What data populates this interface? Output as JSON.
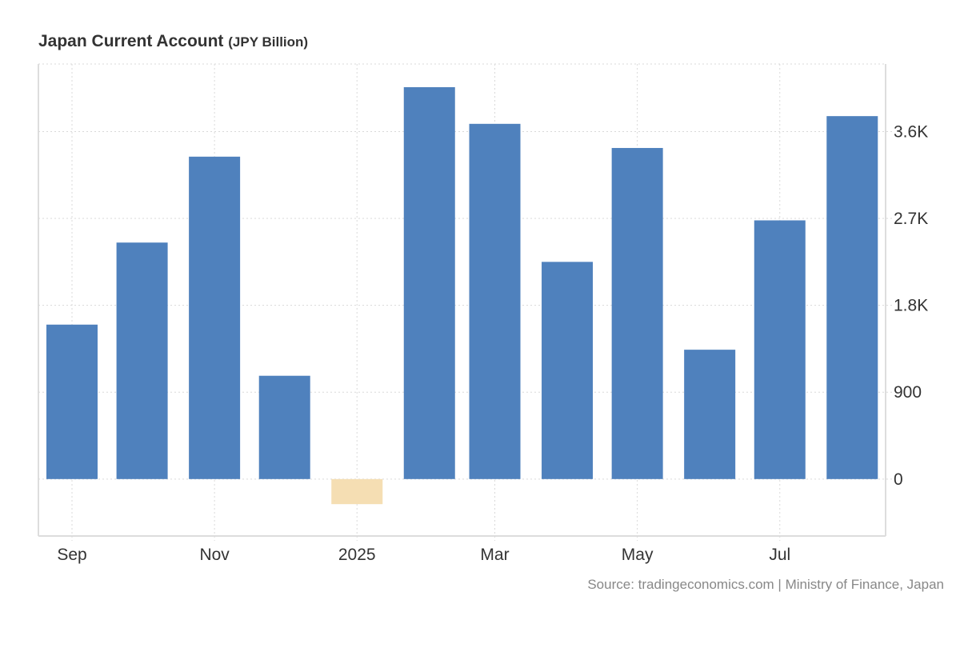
{
  "chart_data": {
    "type": "bar",
    "title": "Japan Current Account",
    "unit": "(JPY Billion)",
    "categories": [
      "2024-09",
      "2024-10",
      "2024-11",
      "2024-12",
      "2025-01",
      "2025-02",
      "2025-03",
      "2025-04",
      "2025-05",
      "2025-06",
      "2025-07",
      "2025-08"
    ],
    "values": [
      1600,
      2450,
      3340,
      1070,
      -260,
      4060,
      3680,
      2250,
      3430,
      1340,
      2680,
      3760
    ],
    "ylim": [
      -590,
      4300
    ],
    "yticks": [
      0,
      900,
      1800,
      2700,
      3600
    ],
    "ytick_labels": [
      "0",
      "900",
      "1.8K",
      "2.7K",
      "3.6K"
    ],
    "xticks": [
      "2024-09-01",
      "2024-11-01",
      "2025-01-01",
      "2025-03-01",
      "2025-05-01",
      "2025-07-01"
    ],
    "xtick_labels": [
      "Sep",
      "Nov",
      "2025",
      "Mar",
      "May",
      "Jul"
    ],
    "grid": true,
    "y_axis_side": "right",
    "colors": {
      "positive": "#4f81bd",
      "negative": "#f5deb3",
      "grid": "#d9d9d9"
    }
  },
  "source": "Source: tradingeconomics.com | Ministry of Finance, Japan"
}
